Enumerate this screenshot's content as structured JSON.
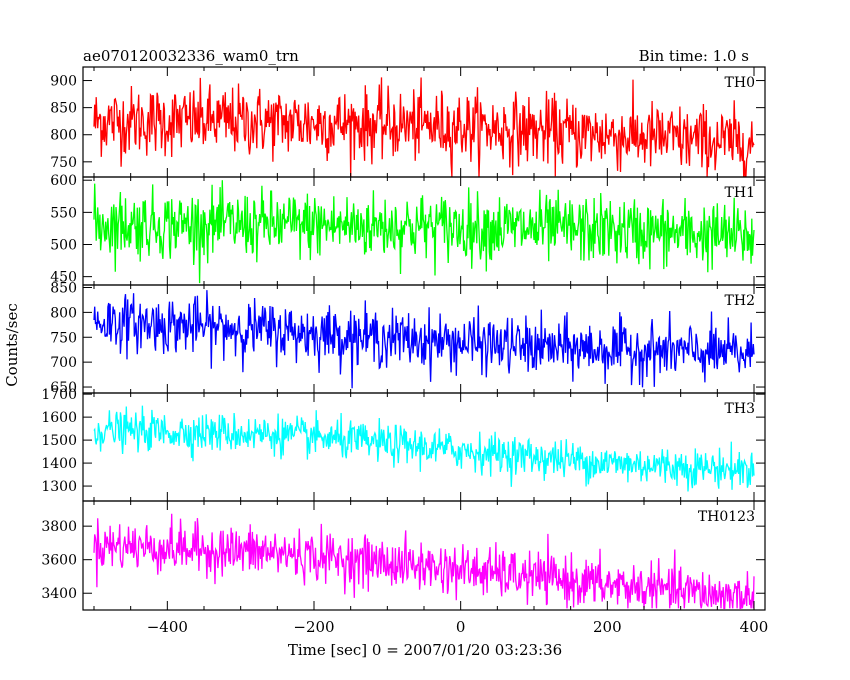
{
  "header": {
    "left_title": "ae070120032336_wam0_trn",
    "right_title": "Bin time: 1.0 s"
  },
  "axes": {
    "xlabel": "Time [sec] 0 = 2007/01/20 03:23:36",
    "ylabel": "Counts/sec"
  },
  "chart_data": {
    "type": "line",
    "shared_x": {
      "range": [
        -515,
        415
      ],
      "ticks": [
        -400,
        -200,
        0,
        200,
        400
      ],
      "bin_time_s": 1.0,
      "x_start": -500,
      "x_end": 400
    },
    "panels": [
      {
        "name": "TH0",
        "color": "#ff0000",
        "ylim": [
          722,
          925
        ],
        "ticks": [
          750,
          800,
          850,
          900
        ],
        "trend": [
          [
            -500,
            825
          ],
          [
            -300,
            825
          ],
          [
            0,
            815
          ],
          [
            200,
            800
          ],
          [
            400,
            783
          ]
        ],
        "noise_sd": 32,
        "y_min": 722,
        "y_max": 925
      },
      {
        "name": "TH1",
        "color": "#00ff00",
        "ylim": [
          437,
          605
        ],
        "ticks": [
          450,
          500,
          550,
          600
        ],
        "trend": [
          [
            -500,
            532
          ],
          [
            -200,
            530
          ],
          [
            0,
            527
          ],
          [
            200,
            522
          ],
          [
            400,
            512
          ]
        ],
        "noise_sd": 26,
        "y_min": 440,
        "y_max": 600
      },
      {
        "name": "TH2",
        "color": "#0000ff",
        "ylim": [
          638,
          855
        ],
        "ticks": [
          650,
          700,
          750,
          800,
          850
        ],
        "trend": [
          [
            -500,
            782
          ],
          [
            -300,
            768
          ],
          [
            -100,
            748
          ],
          [
            100,
            730
          ],
          [
            400,
            716
          ]
        ],
        "noise_sd": 28,
        "y_min": 640,
        "y_max": 855
      },
      {
        "name": "TH3",
        "color": "#00ffff",
        "ylim": [
          1235,
          1705
        ],
        "ticks": [
          1300,
          1400,
          1500,
          1600,
          1700
        ],
        "trend": [
          [
            -500,
            1545
          ],
          [
            -250,
            1525
          ],
          [
            0,
            1455
          ],
          [
            200,
            1400
          ],
          [
            400,
            1370
          ]
        ],
        "noise_sd": 42,
        "y_min": 1240,
        "y_max": 1705
      },
      {
        "name": "TH0123",
        "color": "#ff00ff",
        "ylim": [
          3300,
          3950
        ],
        "ticks": [
          3400,
          3600,
          3800
        ],
        "trend": [
          [
            -500,
            3690
          ],
          [
            -250,
            3640
          ],
          [
            0,
            3540
          ],
          [
            200,
            3450
          ],
          [
            400,
            3370
          ]
        ],
        "noise_sd": 75,
        "y_min": 3310,
        "y_max": 3950
      }
    ]
  }
}
